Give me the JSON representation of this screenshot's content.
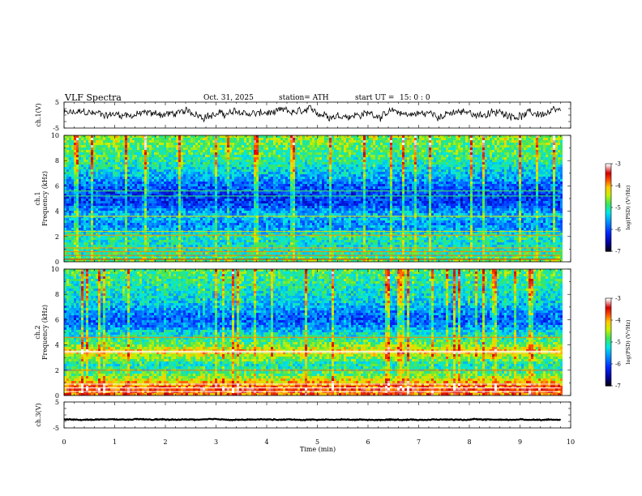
{
  "header": {
    "title": "VLF  Spectra",
    "date": "Oct. 31, 2025",
    "station": "station= ATH",
    "start_ut_label": "start  UT  =",
    "start_ut_value": "15: 0  : 0"
  },
  "chart_data": {
    "type": "heatmap",
    "xlabel": "Time  (min)",
    "x_range": [
      0,
      10
    ],
    "x_ticks": [
      "0",
      "1",
      "2",
      "3",
      "4",
      "5",
      "6",
      "7",
      "8",
      "9",
      "10"
    ],
    "data_end_min": 9.8,
    "panels": [
      {
        "name": "ch1-waveform",
        "type": "line",
        "ylabel": "ch.1(V)",
        "ylim": [
          -5,
          5
        ],
        "y_ticks": [
          "5",
          "-5"
        ],
        "description_level": 0.5,
        "noise_amplitude": 2.2
      },
      {
        "name": "ch1-spectrogram",
        "type": "heatmap",
        "ylabel_top": "ch.1",
        "ylabel": "Frequency  (kHz)",
        "ylim": [
          0,
          10
        ],
        "y_ticks": [
          "0",
          "2",
          "4",
          "6",
          "8",
          "10"
        ],
        "colorbar": {
          "label": "log(PSD) (V²/Hz)",
          "range": [
            -7,
            -3
          ],
          "ticks": [
            "-3",
            "-4",
            "-5",
            "-6",
            "-7"
          ]
        },
        "profile_khz": [
          0,
          0.5,
          1,
          1.5,
          2,
          2.5,
          3,
          3.5,
          4,
          4.5,
          5,
          5.5,
          6,
          6.5,
          7,
          7.5,
          8,
          8.5,
          9,
          9.5,
          10
        ],
        "profile_level": [
          -4.6,
          -5.0,
          -5.1,
          -5.2,
          -5.0,
          -5.5,
          -5.7,
          -5.4,
          -5.6,
          -6.0,
          -6.1,
          -6.0,
          -5.9,
          -5.6,
          -5.4,
          -5.2,
          -5.0,
          -4.9,
          -4.8,
          -4.7,
          -4.6
        ],
        "lines_khz": [
          0.2,
          0.5,
          0.8,
          1.1,
          2.1,
          2.4,
          3.6,
          5.2,
          5.6
        ]
      },
      {
        "name": "ch2-spectrogram",
        "type": "heatmap",
        "ylabel_top": "ch.2",
        "ylabel": "Frequency  (kHz)",
        "ylim": [
          0,
          10
        ],
        "y_ticks": [
          "0",
          "2",
          "4",
          "6",
          "8",
          "10"
        ],
        "colorbar": {
          "label": "log(PSD) (V²/Hz)",
          "range": [
            -7,
            -3
          ],
          "ticks": [
            "-3",
            "-4",
            "-5",
            "-6",
            "-7"
          ]
        },
        "profile_khz": [
          0,
          0.5,
          1,
          1.5,
          2,
          2.5,
          3,
          3.5,
          4,
          4.5,
          5,
          5.5,
          6,
          6.5,
          7,
          7.5,
          8,
          8.5,
          9,
          9.5,
          10
        ],
        "profile_level": [
          -3.9,
          -3.6,
          -4.0,
          -4.6,
          -5.0,
          -5.1,
          -4.6,
          -4.1,
          -4.7,
          -5.0,
          -5.3,
          -5.7,
          -5.9,
          -5.7,
          -5.5,
          -5.3,
          -5.2,
          -5.1,
          -5.0,
          -4.9,
          -4.8
        ],
        "lines_khz": [
          0.3,
          0.6,
          0.9,
          2.0,
          3.4,
          3.5,
          4.6
        ]
      },
      {
        "name": "ch3-waveform",
        "type": "line",
        "ylabel": "ch.3(V)",
        "ylim": [
          -5,
          5
        ],
        "y_ticks": [
          "5",
          "-5"
        ],
        "description_level": -1.8,
        "noise_amplitude": 0.25
      }
    ]
  }
}
